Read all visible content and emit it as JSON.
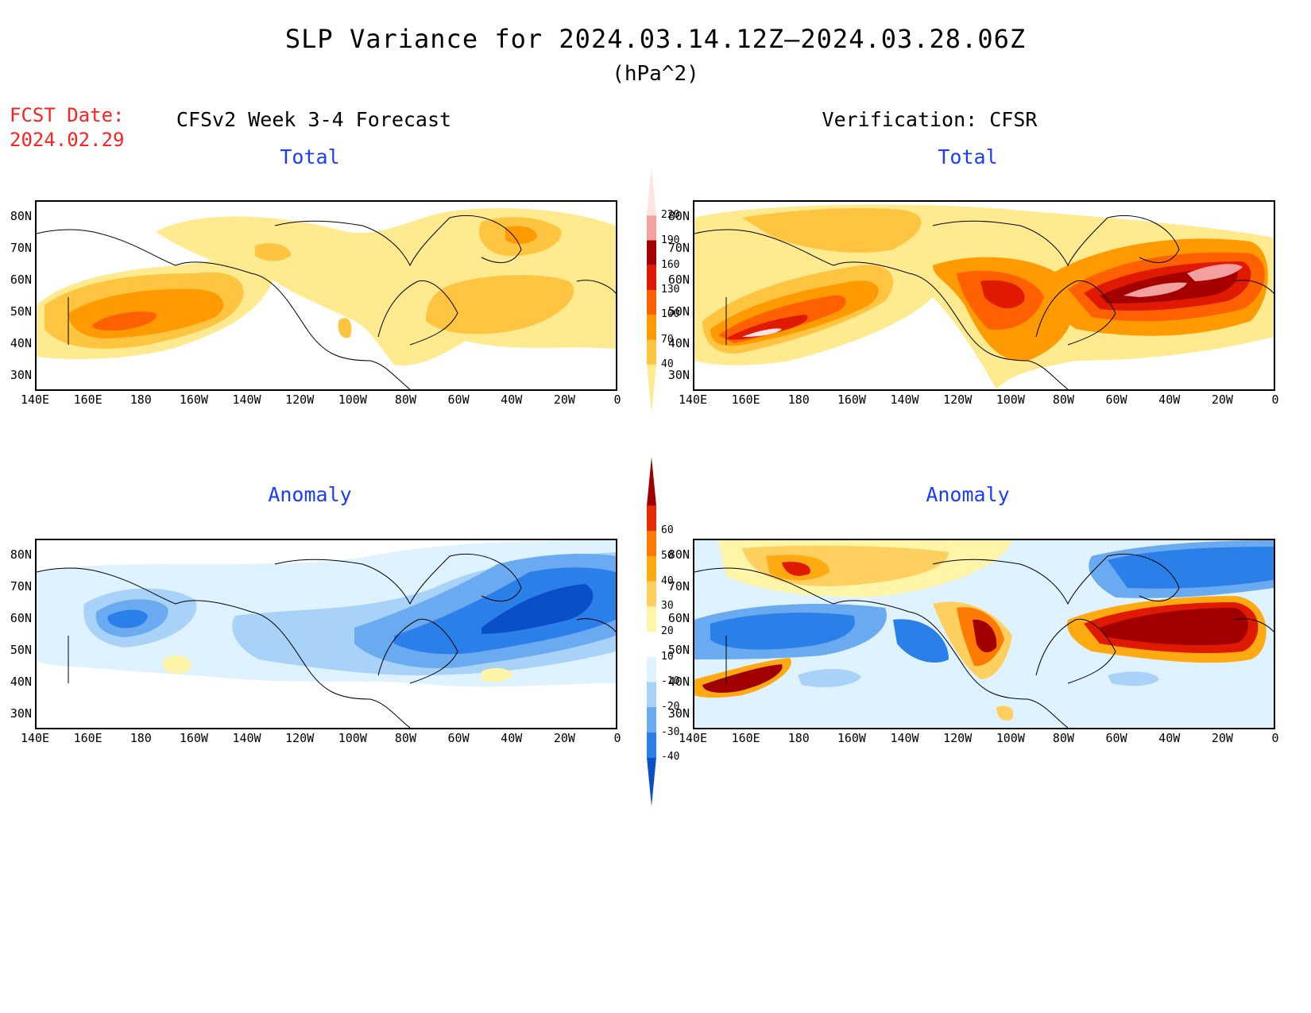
{
  "header": {
    "title": "SLP Variance for 2024.03.14.12Z—2024.03.28.06Z",
    "units": "(hPa^2)",
    "fcst_label": "FCST Date:",
    "fcst_date": "2024.02.29"
  },
  "columns": {
    "left": "CFSv2 Week 3-4 Forecast",
    "right": "Verification: CFSR"
  },
  "panels": {
    "forecast_total": "Total",
    "verification_total": "Total",
    "forecast_anomaly": "Anomaly",
    "verification_anomaly": "Anomaly"
  },
  "axes": {
    "lat_labels": [
      "80N",
      "70N",
      "60N",
      "50N",
      "40N",
      "30N"
    ],
    "lon_labels": [
      "140E",
      "160E",
      "180",
      "160W",
      "140W",
      "120W",
      "100W",
      "80W",
      "60W",
      "40W",
      "20W",
      "0"
    ]
  },
  "colorbars": {
    "total": {
      "levels": [
        "40",
        "70",
        "100",
        "130",
        "160",
        "190",
        "220"
      ],
      "colors": [
        "#ffea90",
        "#ffc440",
        "#ff9a00",
        "#ff6000",
        "#e01a00",
        "#a50000",
        "#f2a0a0",
        "#ffe4e4"
      ]
    },
    "anomaly": {
      "levels": [
        "-40",
        "-30",
        "-20",
        "-10",
        "10",
        "20",
        "30",
        "40",
        "50",
        "60"
      ],
      "colors": [
        "#0a4fc8",
        "#2a7fe8",
        "#6aaaf0",
        "#a8d2f8",
        "#dff2ff",
        "#ffffff",
        "#fff5a8",
        "#ffd060",
        "#ffaa10",
        "#ff7a00",
        "#e82a00",
        "#a00000"
      ]
    }
  }
}
